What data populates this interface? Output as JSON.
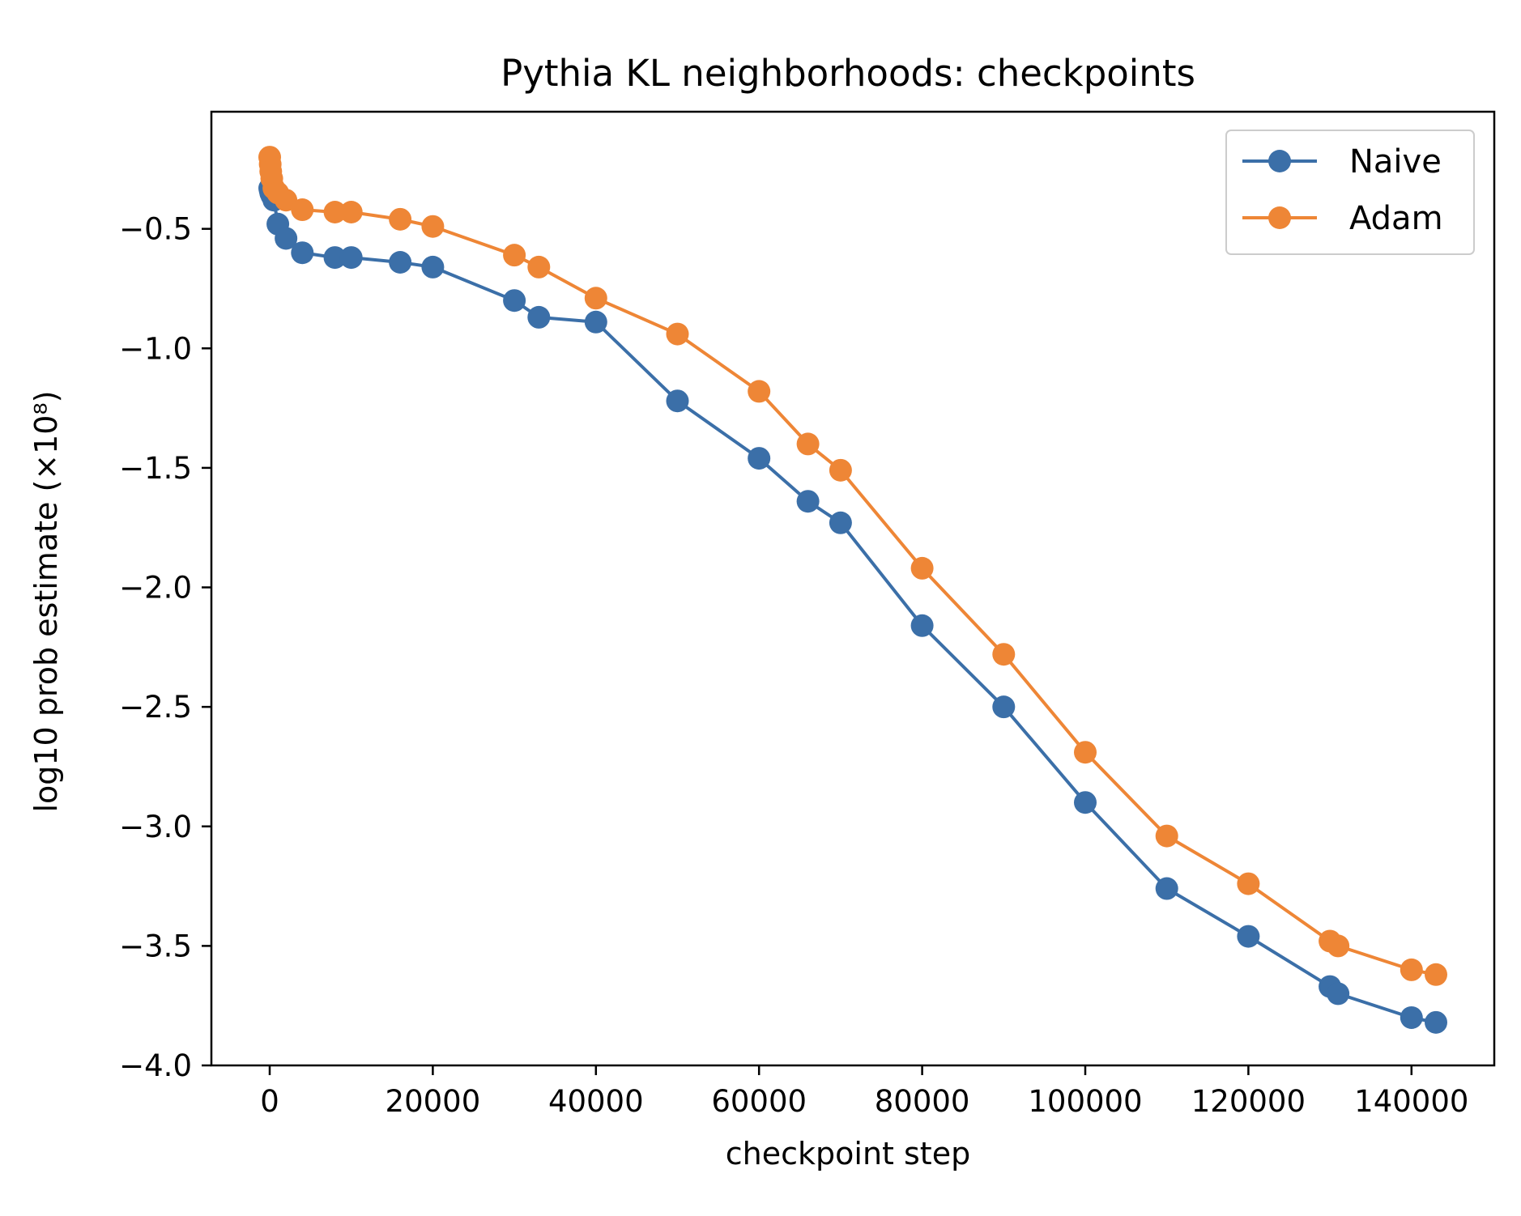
{
  "chart_data": {
    "type": "line",
    "title": "Pythia KL neighborhoods: checkpoints",
    "xlabel": "checkpoint step",
    "ylabel": "log10 prob estimate (×10⁸)",
    "xlim": [
      -7150,
      150150
    ],
    "ylim": [
      -4.0,
      -0.01
    ],
    "x_ticks": [
      0,
      20000,
      40000,
      60000,
      80000,
      100000,
      120000,
      140000
    ],
    "x_tick_labels": [
      "0",
      "20000",
      "40000",
      "60000",
      "80000",
      "100000",
      "120000",
      "140000"
    ],
    "y_ticks": [
      -0.5,
      -1.0,
      -1.5,
      -2.0,
      -2.5,
      -3.0,
      -3.5,
      -4.0
    ],
    "y_tick_labels": [
      "−0.5",
      "−1.0",
      "−1.5",
      "−2.0",
      "−2.5",
      "−3.0",
      "−3.5",
      "−4.0"
    ],
    "grid": false,
    "legend_position": "top-right",
    "series": [
      {
        "name": "Naive",
        "color": "#3b6fa8",
        "x": [
          0,
          64,
          128,
          256,
          512,
          1000,
          2000,
          4000,
          8000,
          10000,
          16000,
          20000,
          30000,
          33000,
          40000,
          50000,
          60000,
          66000,
          70000,
          80000,
          90000,
          100000,
          110000,
          120000,
          130000,
          131000,
          140000,
          143000
        ],
        "y": [
          -0.33,
          -0.34,
          -0.35,
          -0.36,
          -0.38,
          -0.48,
          -0.54,
          -0.6,
          -0.62,
          -0.62,
          -0.64,
          -0.66,
          -0.8,
          -0.87,
          -0.89,
          -1.22,
          -1.46,
          -1.64,
          -1.73,
          -2.16,
          -2.5,
          -2.9,
          -3.26,
          -3.46,
          -3.67,
          -3.7,
          -3.8,
          -3.82
        ]
      },
      {
        "name": "Adam",
        "color": "#ee8636",
        "x": [
          0,
          64,
          128,
          256,
          512,
          1000,
          2000,
          4000,
          8000,
          10000,
          16000,
          20000,
          30000,
          33000,
          40000,
          50000,
          60000,
          66000,
          70000,
          80000,
          90000,
          100000,
          110000,
          120000,
          130000,
          131000,
          140000,
          143000
        ],
        "y": [
          -0.2,
          -0.23,
          -0.26,
          -0.29,
          -0.33,
          -0.35,
          -0.38,
          -0.42,
          -0.43,
          -0.43,
          -0.46,
          -0.49,
          -0.61,
          -0.66,
          -0.79,
          -0.94,
          -1.18,
          -1.4,
          -1.51,
          -1.92,
          -2.28,
          -2.69,
          -3.04,
          -3.24,
          -3.48,
          -3.5,
          -3.6,
          -3.62
        ]
      }
    ]
  }
}
